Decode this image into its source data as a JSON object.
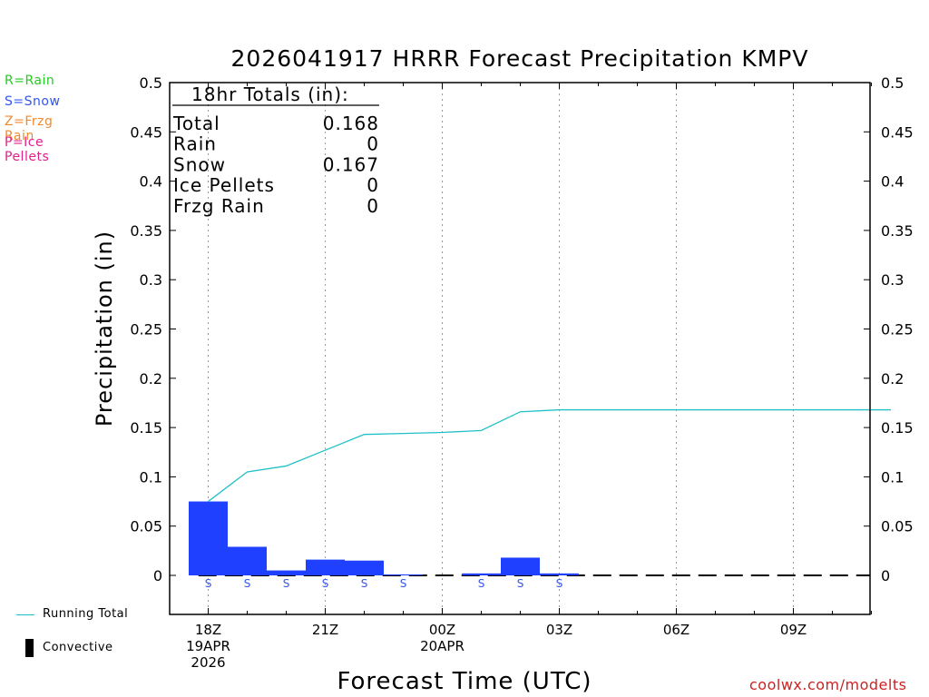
{
  "header": {
    "title": "2026041917 HRRR Forecast Precipitation KMPV",
    "credit": "coolwx.com/modelts"
  },
  "colors": {
    "bar": "#2040ff",
    "running_total": "#20c0c8",
    "rain": "#22cc22",
    "snow": "#3355ee",
    "frzg_rain": "#f08a30",
    "ice_pellets": "#e0208c",
    "grid": "#9a9a9a"
  },
  "ptype_legend": [
    {
      "label": "R=Rain",
      "color_key": "rain"
    },
    {
      "label": "S=Snow",
      "color_key": "snow"
    },
    {
      "label": "Z=Frzg Rain",
      "color_key": "frzg_rain"
    },
    {
      "label": "P=Ice Pellets",
      "color_key": "ice_pellets"
    }
  ],
  "bottom_legend": {
    "running_total": "Running Total",
    "convective": "Convective"
  },
  "totals_box": {
    "heading": "18hr Totals (in):",
    "rows": [
      {
        "label": "Total",
        "value": "0.168"
      },
      {
        "label": "Rain",
        "value": "0"
      },
      {
        "label": "Snow",
        "value": "0.167"
      },
      {
        "label": "Ice Pellets",
        "value": "0"
      },
      {
        "label": "Frzg Rain",
        "value": "0"
      }
    ]
  },
  "chart_data": {
    "type": "bar",
    "title": "2026041917 HRRR Forecast Precipitation KMPV",
    "xlabel": "Forecast Time (UTC)",
    "ylabel": "Precipitation (in)",
    "ylim": [
      -0.04,
      0.5
    ],
    "yticks": [
      "0",
      "0.05",
      "0.1",
      "0.15",
      "0.2",
      "0.25",
      "0.3",
      "0.35",
      "0.4",
      "0.45",
      "0.5"
    ],
    "ytick_values": [
      0,
      0.05,
      0.1,
      0.15,
      0.2,
      0.25,
      0.3,
      0.35,
      0.4,
      0.45,
      0.5
    ],
    "x_range_hours": [
      17.5,
      35.5
    ],
    "xticks": [
      {
        "hour": 18,
        "lines": [
          "18Z",
          "19APR",
          "2026"
        ]
      },
      {
        "hour": 21,
        "lines": [
          "21Z"
        ]
      },
      {
        "hour": 24,
        "lines": [
          "00Z",
          "20APR"
        ]
      },
      {
        "hour": 27,
        "lines": [
          "03Z"
        ]
      },
      {
        "hour": 30,
        "lines": [
          "06Z"
        ]
      },
      {
        "hour": 33,
        "lines": [
          "09Z"
        ]
      }
    ],
    "grid": true,
    "hourly": [
      {
        "hour": 18,
        "precip": 0.075,
        "ptype": "S"
      },
      {
        "hour": 19,
        "precip": 0.029,
        "ptype": "S"
      },
      {
        "hour": 20,
        "precip": 0.005,
        "ptype": "S"
      },
      {
        "hour": 21,
        "precip": 0.016,
        "ptype": "S"
      },
      {
        "hour": 22,
        "precip": 0.015,
        "ptype": "S"
      },
      {
        "hour": 23,
        "precip": 0.001,
        "ptype": "S"
      },
      {
        "hour": 24,
        "precip": 0.0,
        "ptype": ""
      },
      {
        "hour": 25,
        "precip": 0.002,
        "ptype": "S"
      },
      {
        "hour": 26,
        "precip": 0.018,
        "ptype": "S"
      },
      {
        "hour": 27,
        "precip": 0.002,
        "ptype": "S"
      },
      {
        "hour": 28,
        "precip": 0.0,
        "ptype": ""
      },
      {
        "hour": 29,
        "precip": 0.0,
        "ptype": ""
      },
      {
        "hour": 30,
        "precip": 0.0,
        "ptype": ""
      },
      {
        "hour": 31,
        "precip": 0.0,
        "ptype": ""
      },
      {
        "hour": 32,
        "precip": 0.0,
        "ptype": ""
      },
      {
        "hour": 33,
        "precip": 0.0,
        "ptype": ""
      },
      {
        "hour": 34,
        "precip": 0.0,
        "ptype": ""
      },
      {
        "hour": 35,
        "precip": 0.0,
        "ptype": ""
      }
    ],
    "running_total": {
      "name": "Running Total",
      "x": [
        18,
        19,
        20,
        21,
        22,
        23,
        24,
        25,
        26,
        27,
        28,
        29,
        30,
        31,
        32,
        33,
        34,
        35.5
      ],
      "values": [
        0.075,
        0.105,
        0.111,
        0.127,
        0.143,
        0.144,
        0.145,
        0.147,
        0.166,
        0.168,
        0.168,
        0.168,
        0.168,
        0.168,
        0.168,
        0.168,
        0.168,
        0.168
      ]
    }
  }
}
